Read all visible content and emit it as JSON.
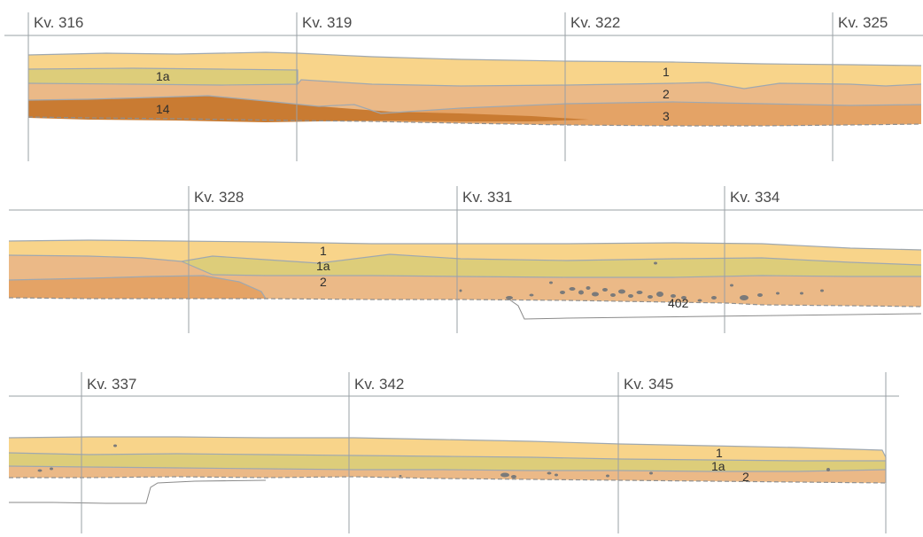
{
  "colors": {
    "layer_1": "#f8d48a",
    "layer_1a": "#ddcd7a",
    "layer_2": "#ebb987",
    "layer_3": "#e4a366",
    "layer_14": "#c97b32",
    "stones": "#7a7a7a",
    "grid": "#9aa0a6",
    "boundary": "#9fa8b0"
  },
  "panels": [
    {
      "kv_labels": [
        "Kv. 316",
        "Kv. 319",
        "Kv. 322",
        "Kv. 325"
      ],
      "layer_labels": [
        "1a",
        "14",
        "1",
        "2",
        "3"
      ]
    },
    {
      "kv_labels": [
        "Kv. 328",
        "Kv. 331",
        "Kv. 334"
      ],
      "layer_labels": [
        "1",
        "1a",
        "2",
        "402"
      ]
    },
    {
      "kv_labels": [
        "Kv. 337",
        "Kv. 342",
        "Kv. 345"
      ],
      "layer_labels": [
        "1",
        "1a",
        "2"
      ]
    }
  ]
}
